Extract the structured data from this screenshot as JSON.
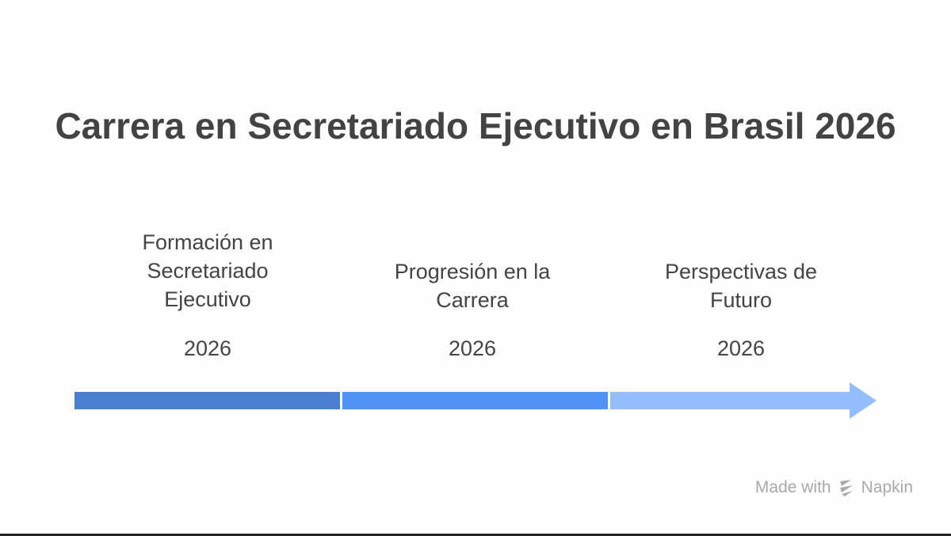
{
  "title": "Carrera en Secretariado Ejecutivo en Brasil 2026",
  "stages": [
    {
      "label_lines": [
        "Formación en",
        "Secretariado",
        "Ejecutivo"
      ],
      "year": "2026",
      "color": "#4a7fd0"
    },
    {
      "label_lines": [
        "Progresión en la",
        "Carrera"
      ],
      "year": "2026",
      "color": "#5092f4"
    },
    {
      "label_lines": [
        "Perspectivas de",
        "Futuro"
      ],
      "year": "2026",
      "color": "#93bdfb"
    }
  ],
  "branding": {
    "text": "Made with",
    "name": "Napkin",
    "icon": "napkin-logo-icon"
  }
}
